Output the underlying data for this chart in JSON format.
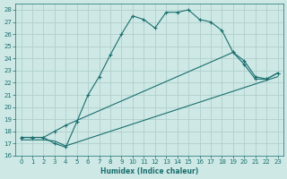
{
  "xlabel": "Humidex (Indice chaleur)",
  "xlim": [
    -0.5,
    23.5
  ],
  "ylim": [
    16,
    28.5
  ],
  "yticks": [
    16,
    17,
    18,
    19,
    20,
    21,
    22,
    23,
    24,
    25,
    26,
    27,
    28
  ],
  "xticks": [
    0,
    1,
    2,
    3,
    4,
    5,
    6,
    7,
    8,
    9,
    10,
    11,
    12,
    13,
    14,
    15,
    16,
    17,
    18,
    19,
    20,
    21,
    22,
    23
  ],
  "bg_color": "#cde8e5",
  "grid_color": "#b0d0cc",
  "line_color": "#1a6e6e",
  "line1_x": [
    0,
    1,
    2,
    3,
    4,
    5,
    6,
    7,
    8,
    9,
    10,
    11,
    12,
    13,
    14,
    15,
    16,
    17,
    18,
    19,
    20,
    21,
    22,
    23
  ],
  "line1_y": [
    17.5,
    17.5,
    17.5,
    17.0,
    16.7,
    18.8,
    21.0,
    22.5,
    24.3,
    26.0,
    27.5,
    27.2,
    26.5,
    27.8,
    27.8,
    28.0,
    27.2,
    27.0,
    26.3,
    24.5,
    23.5,
    22.3,
    22.3,
    22.8
  ],
  "line2_x": [
    0,
    1,
    2,
    3,
    4,
    19,
    20,
    21,
    22,
    23
  ],
  "line2_y": [
    17.5,
    17.5,
    17.5,
    18.0,
    18.5,
    24.5,
    23.8,
    22.5,
    22.3,
    22.8
  ],
  "line3_x": [
    0,
    1,
    2,
    3,
    4,
    23
  ],
  "line3_y": [
    17.3,
    17.3,
    17.3,
    17.2,
    16.8,
    22.5
  ]
}
